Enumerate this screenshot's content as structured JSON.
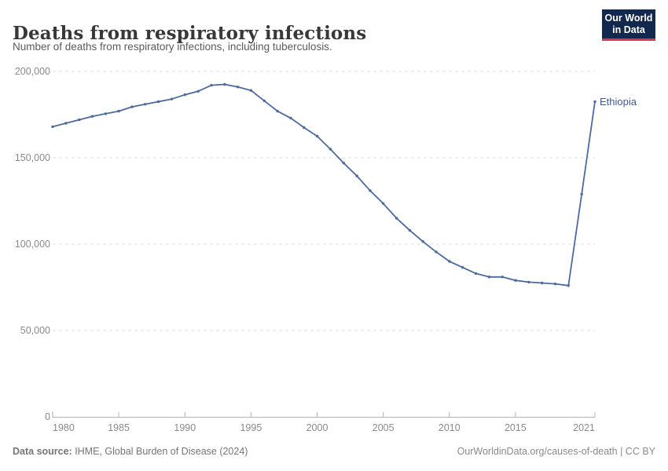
{
  "header": {
    "title": "Deaths from respiratory infections",
    "subtitle": "Number of deaths from respiratory infections, including tuberculosis.",
    "logo": {
      "line1": "Our World",
      "line2": "in Data",
      "bg_color": "#12294d",
      "accent_color": "#dc3545"
    }
  },
  "chart_data": {
    "type": "line",
    "title": "Deaths from respiratory infections",
    "subtitle": "Number of deaths from respiratory infections, including tuberculosis.",
    "xlabel": "",
    "ylabel": "",
    "xlim": [
      1980,
      2021
    ],
    "ylim": [
      0,
      200000
    ],
    "grid": "horizontal-dashed",
    "legend_position": "end-of-line-label",
    "series": [
      {
        "name": "Ethiopia",
        "color": "#4c6a9c",
        "label_color": "#3d5a96",
        "x": [
          1980,
          1981,
          1982,
          1983,
          1984,
          1985,
          1986,
          1987,
          1988,
          1989,
          1990,
          1991,
          1992,
          1993,
          1994,
          1995,
          1996,
          1997,
          1998,
          1999,
          2000,
          2001,
          2002,
          2003,
          2004,
          2005,
          2006,
          2007,
          2008,
          2009,
          2010,
          2011,
          2012,
          2013,
          2014,
          2015,
          2016,
          2017,
          2018,
          2019,
          2020,
          2021
        ],
        "values": [
          168000,
          170000,
          172000,
          174000,
          175500,
          177000,
          179500,
          181000,
          182500,
          184000,
          186500,
          188500,
          192000,
          192500,
          191000,
          189000,
          183000,
          177000,
          173000,
          167500,
          162500,
          155000,
          147000,
          139500,
          131000,
          123500,
          115000,
          108000,
          101500,
          95500,
          90000,
          86500,
          83000,
          81000,
          81000,
          79000,
          78000,
          77500,
          77000,
          76000,
          129000,
          182500
        ]
      }
    ],
    "x_ticks": [
      {
        "year": 1980,
        "label": "1980"
      },
      {
        "year": 1985,
        "label": "1985"
      },
      {
        "year": 1990,
        "label": "1990"
      },
      {
        "year": 1995,
        "label": "1995"
      },
      {
        "year": 2000,
        "label": "2000"
      },
      {
        "year": 2005,
        "label": "2005"
      },
      {
        "year": 2010,
        "label": "2010"
      },
      {
        "year": 2015,
        "label": "2015"
      },
      {
        "year": 2021,
        "label": "2021"
      }
    ],
    "y_ticks": [
      {
        "value": 0,
        "label": "0"
      },
      {
        "value": 50000,
        "label": "50,000"
      },
      {
        "value": 100000,
        "label": "100,000"
      },
      {
        "value": 150000,
        "label": "150,000"
      },
      {
        "value": 200000,
        "label": "200,000"
      }
    ]
  },
  "footer": {
    "source_label": "Data source:",
    "source_text": " IHME, Global Burden of Disease (2024)",
    "link_text": "OurWorldinData.org/causes-of-death | CC BY"
  }
}
